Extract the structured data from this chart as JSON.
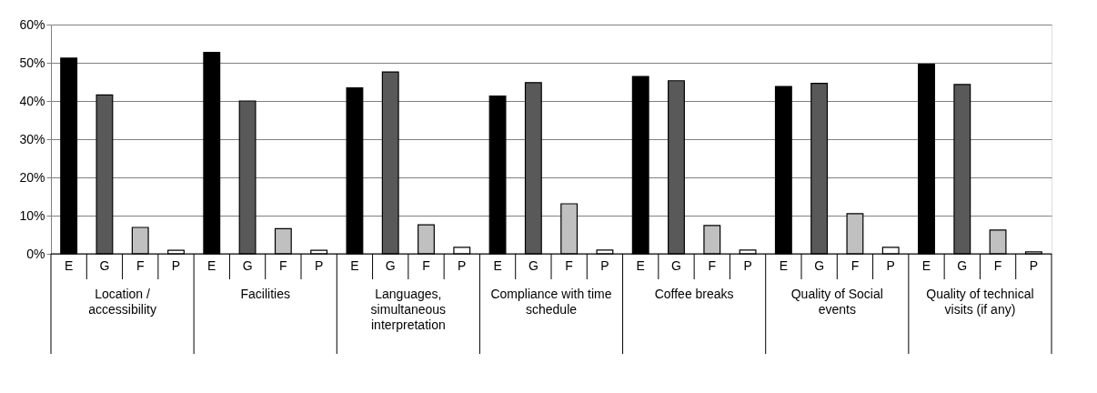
{
  "chart_data": {
    "type": "bar",
    "categories": [
      "E",
      "G",
      "F",
      "P",
      "E",
      "G",
      "F",
      "P",
      "E",
      "G",
      "F",
      "P",
      "E",
      "G",
      "F",
      "P",
      "E",
      "G",
      "F",
      "P",
      "E",
      "G",
      "F",
      "P",
      "E",
      "G",
      "F",
      "P"
    ],
    "values": [
      51.2,
      41.6,
      6.9,
      0.9,
      52.7,
      40.0,
      6.6,
      0.9,
      43.4,
      47.6,
      7.6,
      1.7,
      41.3,
      44.8,
      13.1,
      1.0,
      46.4,
      45.3,
      7.4,
      1.0,
      43.8,
      44.6,
      10.5,
      1.7,
      49.6,
      44.3,
      6.2,
      0.5
    ],
    "colors": [
      "#000000",
      "#595959",
      "#c0c0c0",
      "#ffffff",
      "#000000",
      "#595959",
      "#c0c0c0",
      "#ffffff",
      "#000000",
      "#595959",
      "#c0c0c0",
      "#ffffff",
      "#000000",
      "#595959",
      "#c0c0c0",
      "#ffffff",
      "#000000",
      "#595959",
      "#c0c0c0",
      "#ffffff",
      "#000000",
      "#595959",
      "#c0c0c0",
      "#ffffff",
      "#000000",
      "#595959",
      "#c0c0c0",
      "#ffffff"
    ],
    "annotations": [
      "Location / accessibility",
      "Facilities",
      "Languages, simultaneous interpretation",
      "Compliance with time schedule",
      "Coffee breaks",
      "Quality of Social events",
      "Quality of technical visits (if any)"
    ],
    "ylim": [
      0,
      60
    ],
    "yticks": [
      {
        "value": 0,
        "label": "0%"
      },
      {
        "value": 10,
        "label": "10%"
      },
      {
        "value": 20,
        "label": "20%"
      },
      {
        "value": 30,
        "label": "30%"
      },
      {
        "value": 40,
        "label": "40%"
      },
      {
        "value": 50,
        "label": "50%"
      },
      {
        "value": 60,
        "label": "60%"
      }
    ],
    "grid": "y"
  }
}
